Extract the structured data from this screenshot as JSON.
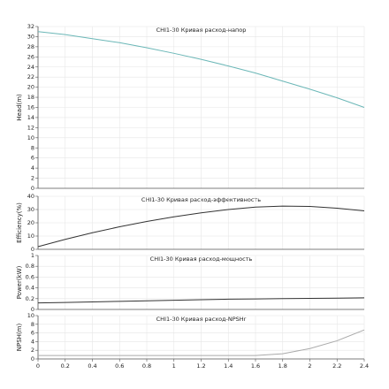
{
  "chart_data": [
    {
      "type": "line",
      "title": "CHI1-30 Кривая расход-напор",
      "ylabel": "Head(m)",
      "x": [
        0,
        0.2,
        0.4,
        0.6,
        0.8,
        1,
        1.2,
        1.4,
        1.6,
        1.8,
        2,
        2.2,
        2.4
      ],
      "series": [
        {
          "name": "Head",
          "color": "#6bb7b7",
          "values": [
            31,
            30.4,
            29.6,
            28.8,
            27.8,
            26.7,
            25.5,
            24.2,
            22.8,
            21.2,
            19.6,
            17.9,
            16
          ]
        }
      ],
      "xlim": [
        0,
        2.4
      ],
      "ylim": [
        0,
        32
      ],
      "yticks": [
        0,
        2,
        4,
        6,
        8,
        10,
        12,
        14,
        16,
        18,
        20,
        22,
        24,
        26,
        28,
        30,
        32
      ],
      "grid": true
    },
    {
      "type": "line",
      "title": "CHI1-30 Кривая расход-эффективность",
      "ylabel": "Efficiency(%)",
      "x": [
        0,
        0.2,
        0.4,
        0.6,
        0.8,
        1,
        1.2,
        1.4,
        1.6,
        1.8,
        2,
        2.2,
        2.4
      ],
      "series": [
        {
          "name": "Efficiency",
          "color": "#333333",
          "values": [
            2,
            7.5,
            12.5,
            17,
            21,
            24.5,
            27.5,
            30,
            31.8,
            32.6,
            32.3,
            31,
            29
          ]
        }
      ],
      "xlim": [
        0,
        2.4
      ],
      "ylim": [
        0,
        40
      ],
      "yticks": [
        0,
        10,
        20,
        30,
        40
      ],
      "grid": true
    },
    {
      "type": "line",
      "title": "CHI1-30 Кривая расход-мощность",
      "ylabel": "Power(kW)",
      "x": [
        0,
        0.2,
        0.4,
        0.6,
        0.8,
        1,
        1.2,
        1.4,
        1.6,
        1.8,
        2,
        2.2,
        2.4
      ],
      "series": [
        {
          "name": "Power",
          "color": "#333333",
          "values": [
            0.12,
            0.13,
            0.14,
            0.15,
            0.16,
            0.17,
            0.18,
            0.19,
            0.195,
            0.2,
            0.205,
            0.21,
            0.215
          ]
        }
      ],
      "xlim": [
        0,
        2.4
      ],
      "ylim": [
        0,
        1
      ],
      "yticks": [
        0,
        0.2,
        0.4,
        0.6,
        0.8,
        1
      ],
      "grid": true
    },
    {
      "type": "line",
      "title": "CHI1-30 Кривая расход-NPSHr",
      "ylabel": "NPSH(m)",
      "x": [
        0,
        0.2,
        0.4,
        0.6,
        0.8,
        1,
        1.2,
        1.4,
        1.6,
        1.8,
        2,
        2.2,
        2.4
      ],
      "series": [
        {
          "name": "NPSHr",
          "color": "#aaaaaa",
          "values": [
            0.8,
            0.8,
            0.8,
            0.8,
            0.8,
            0.8,
            0.8,
            0.8,
            0.8,
            1.2,
            2.4,
            4.2,
            6.7
          ]
        }
      ],
      "xlim": [
        0,
        2.4
      ],
      "ylim": [
        0,
        10
      ],
      "yticks": [
        0,
        2,
        4,
        6,
        8,
        10
      ],
      "xticks": [
        0,
        0.2,
        0.4,
        0.6,
        0.8,
        1,
        1.2,
        1.4,
        1.6,
        1.8,
        2,
        2.2,
        2.4
      ],
      "grid": true
    }
  ]
}
